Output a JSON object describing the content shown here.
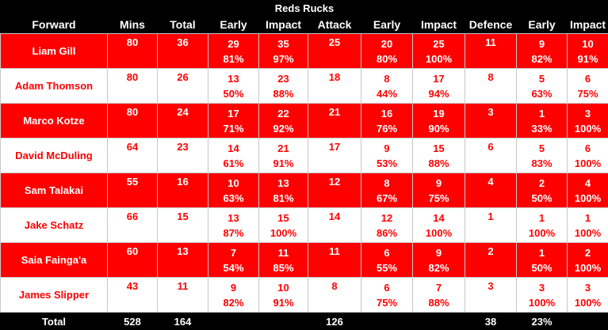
{
  "title": "Reds Rucks",
  "headers": [
    "Forward",
    "Mins",
    "Total",
    "Early",
    "Impact",
    "Attack",
    "Early",
    "Impact",
    "Defence",
    "Early",
    "Impact"
  ],
  "players": [
    {
      "name": "Liam Gill",
      "mins": "80",
      "total": "36",
      "early": "29",
      "early_pct": "81%",
      "impact": "35",
      "impact_pct": "97%",
      "attack": "25",
      "att_early": "20",
      "att_early_pct": "80%",
      "att_impact": "25",
      "att_impact_pct": "100%",
      "defence": "11",
      "def_early": "9",
      "def_early_pct": "82%",
      "def_impact": "10",
      "def_impact_pct": "91%"
    },
    {
      "name": "Adam Thomson",
      "mins": "80",
      "total": "26",
      "early": "13",
      "early_pct": "50%",
      "impact": "23",
      "impact_pct": "88%",
      "attack": "18",
      "att_early": "8",
      "att_early_pct": "44%",
      "att_impact": "17",
      "att_impact_pct": "94%",
      "defence": "8",
      "def_early": "5",
      "def_early_pct": "63%",
      "def_impact": "6",
      "def_impact_pct": "75%"
    },
    {
      "name": "Marco Kotze",
      "mins": "80",
      "total": "24",
      "early": "17",
      "early_pct": "71%",
      "impact": "22",
      "impact_pct": "92%",
      "attack": "21",
      "att_early": "16",
      "att_early_pct": "76%",
      "att_impact": "19",
      "att_impact_pct": "90%",
      "defence": "3",
      "def_early": "1",
      "def_early_pct": "33%",
      "def_impact": "3",
      "def_impact_pct": "100%"
    },
    {
      "name": "David McDuling",
      "mins": "64",
      "total": "23",
      "early": "14",
      "early_pct": "61%",
      "impact": "21",
      "impact_pct": "91%",
      "attack": "17",
      "att_early": "9",
      "att_early_pct": "53%",
      "att_impact": "15",
      "att_impact_pct": "88%",
      "defence": "6",
      "def_early": "5",
      "def_early_pct": "83%",
      "def_impact": "6",
      "def_impact_pct": "100%"
    },
    {
      "name": "Sam Talakai",
      "mins": "55",
      "total": "16",
      "early": "10",
      "early_pct": "63%",
      "impact": "13",
      "impact_pct": "81%",
      "attack": "12",
      "att_early": "8",
      "att_early_pct": "67%",
      "att_impact": "9",
      "att_impact_pct": "75%",
      "defence": "4",
      "def_early": "2",
      "def_early_pct": "50%",
      "def_impact": "4",
      "def_impact_pct": "100%"
    },
    {
      "name": "Jake Schatz",
      "mins": "66",
      "total": "15",
      "early": "13",
      "early_pct": "87%",
      "impact": "15",
      "impact_pct": "100%",
      "attack": "14",
      "att_early": "12",
      "att_early_pct": "86%",
      "att_impact": "14",
      "att_impact_pct": "100%",
      "defence": "1",
      "def_early": "1",
      "def_early_pct": "100%",
      "def_impact": "1",
      "def_impact_pct": "100%"
    },
    {
      "name": "Saia Fainga'a",
      "mins": "60",
      "total": "13",
      "early": "7",
      "early_pct": "54%",
      "impact": "11",
      "impact_pct": "85%",
      "attack": "11",
      "att_early": "6",
      "att_early_pct": "55%",
      "att_impact": "9",
      "att_impact_pct": "82%",
      "defence": "2",
      "def_early": "1",
      "def_early_pct": "50%",
      "def_impact": "2",
      "def_impact_pct": "100%"
    },
    {
      "name": "James Slipper",
      "mins": "43",
      "total": "11",
      "early": "9",
      "early_pct": "82%",
      "impact": "10",
      "impact_pct": "91%",
      "attack": "8",
      "att_early": "6",
      "att_early_pct": "75%",
      "att_impact": "7",
      "att_impact_pct": "88%",
      "defence": "3",
      "def_early": "3",
      "def_early_pct": "100%",
      "def_impact": "3",
      "def_impact_pct": "100%"
    }
  ],
  "totals": {
    "label": "Total",
    "mins": "528",
    "total": "164",
    "attack": "126",
    "defence": "38",
    "def_early_pct": "23%"
  },
  "colors": {
    "red": "#ff0000",
    "white": "#ffffff",
    "black": "#000000"
  }
}
